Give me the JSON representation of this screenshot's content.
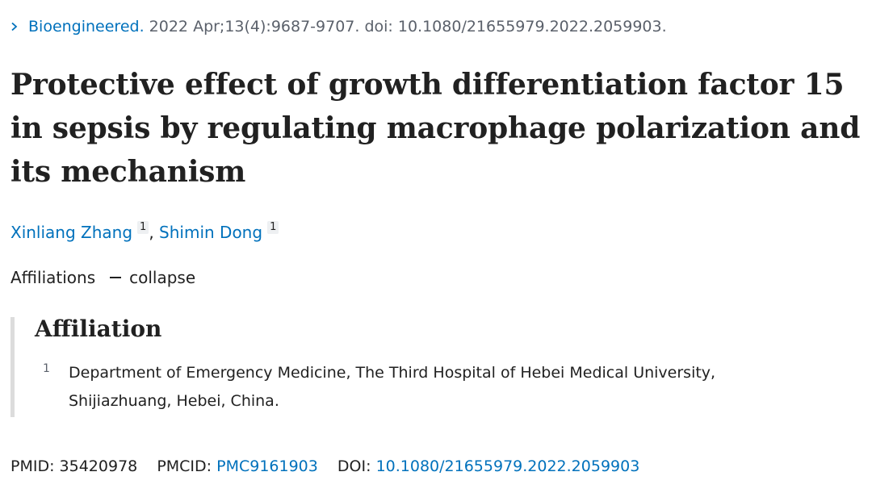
{
  "citation": {
    "journal": "Bioengineered.",
    "details": "2022 Apr;13(4):9687-9707. doi: 10.1080/21655979.2022.2059903."
  },
  "title": "Protective effect of growth differentiation factor 15 in sepsis by regulating macrophage polarization and its mechanism",
  "authors": [
    {
      "name": "Xinliang Zhang",
      "affiliation_ref": "1"
    },
    {
      "name": "Shimin Dong",
      "affiliation_ref": "1"
    }
  ],
  "author_separator": ",",
  "affiliations_toggle": {
    "label": "Affiliations",
    "action": "collapse"
  },
  "affiliation_section": {
    "heading": "Affiliation",
    "items": [
      {
        "number": "1",
        "text": "Department of Emergency Medicine, The Third Hospital of Hebei Medical University, Shijiazhuang, Hebei, China."
      }
    ]
  },
  "identifiers": {
    "pmid_label": "PMID:",
    "pmid": "35420978",
    "pmcid_label": "PMCID:",
    "pmcid": "PMC9161903",
    "doi_label": "DOI:",
    "doi": "10.1080/21655979.2022.2059903"
  },
  "colors": {
    "link": "#0071bc",
    "text": "#212121",
    "muted": "#5b616b",
    "rule": "#dcdcdc"
  }
}
